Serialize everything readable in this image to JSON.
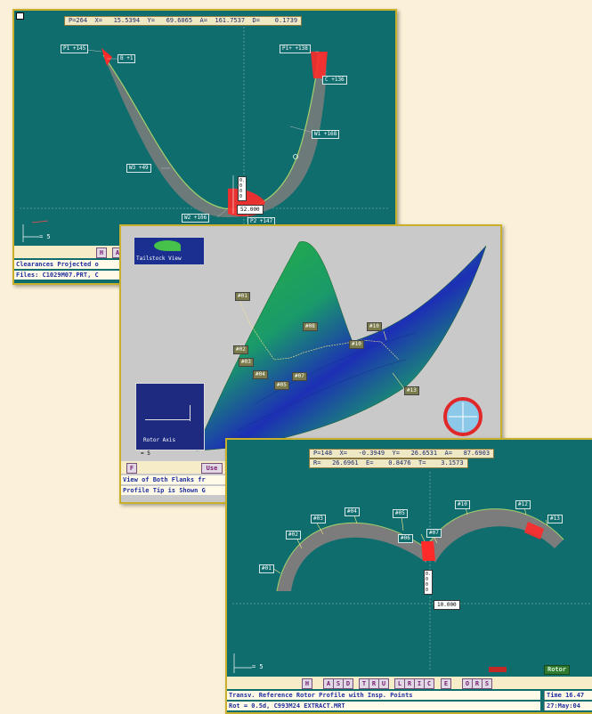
{
  "window1": {
    "readout": "P=264  X=   15.5394  Y=   69.6065  A=  161.7537  D=    0.1739",
    "labels": [
      "P1 +145",
      "B +1",
      "P1+ +138",
      "C +136",
      "W1 +168",
      "W3 +49",
      "W2 +106",
      "P2 +147"
    ],
    "value_box": "52.000",
    "vert_value": "0.000",
    "scale": "= 5",
    "toolbar_buttons": [
      "H",
      "A"
    ],
    "status_lines": [
      "Clearances Projected o",
      "Files: C1029M07.PRT, C"
    ]
  },
  "window2": {
    "logo_text": "Tailstock View",
    "labels": [
      "#01",
      "#02",
      "#03",
      "#04",
      "#05",
      "#07",
      "#08",
      "#10",
      "#10",
      "#13"
    ],
    "inset_caption": "Rotor Axis",
    "scale": "= 5",
    "toolbar_buttons": [
      "F",
      "Use"
    ],
    "status_lines": [
      "View of Both Flanks fr",
      "Profile Tip is Shown G"
    ]
  },
  "window3": {
    "readout_line1": "P=148  X=   -0.3949  Y=   26.6531  A=   87.6903",
    "readout_line2": "R=   26.6961  E=    0.8476  T=    3.1573",
    "labels": [
      "#01",
      "#02",
      "#03",
      "#04",
      "#05",
      "#06",
      "#07",
      "#10",
      "#12",
      "#13"
    ],
    "vert_value": "0.000",
    "horiz_value": "10.000",
    "scale": "= 5",
    "legend_label": "Rotor",
    "legend_icon": "flanks-legend-icon",
    "toolbar_buttons": [
      "H",
      "A",
      "S",
      "D",
      "T",
      "R",
      "U",
      "L",
      "R",
      "I",
      "C",
      "E",
      "O",
      "R",
      "S"
    ],
    "status_lines": [
      "Transv. Reference Rotor Profile with Insp. Points",
      "Rot =  0.5d, C993M24 EXTRACT.MRT"
    ],
    "time_lines": [
      "Time 16.47",
      "27:May:04"
    ]
  },
  "colors": {
    "panel_bg": "#0f6d6e",
    "frame": "#c8b02c",
    "highlight": "#ff2020",
    "gray_view_bg": "#c9c9c9"
  }
}
